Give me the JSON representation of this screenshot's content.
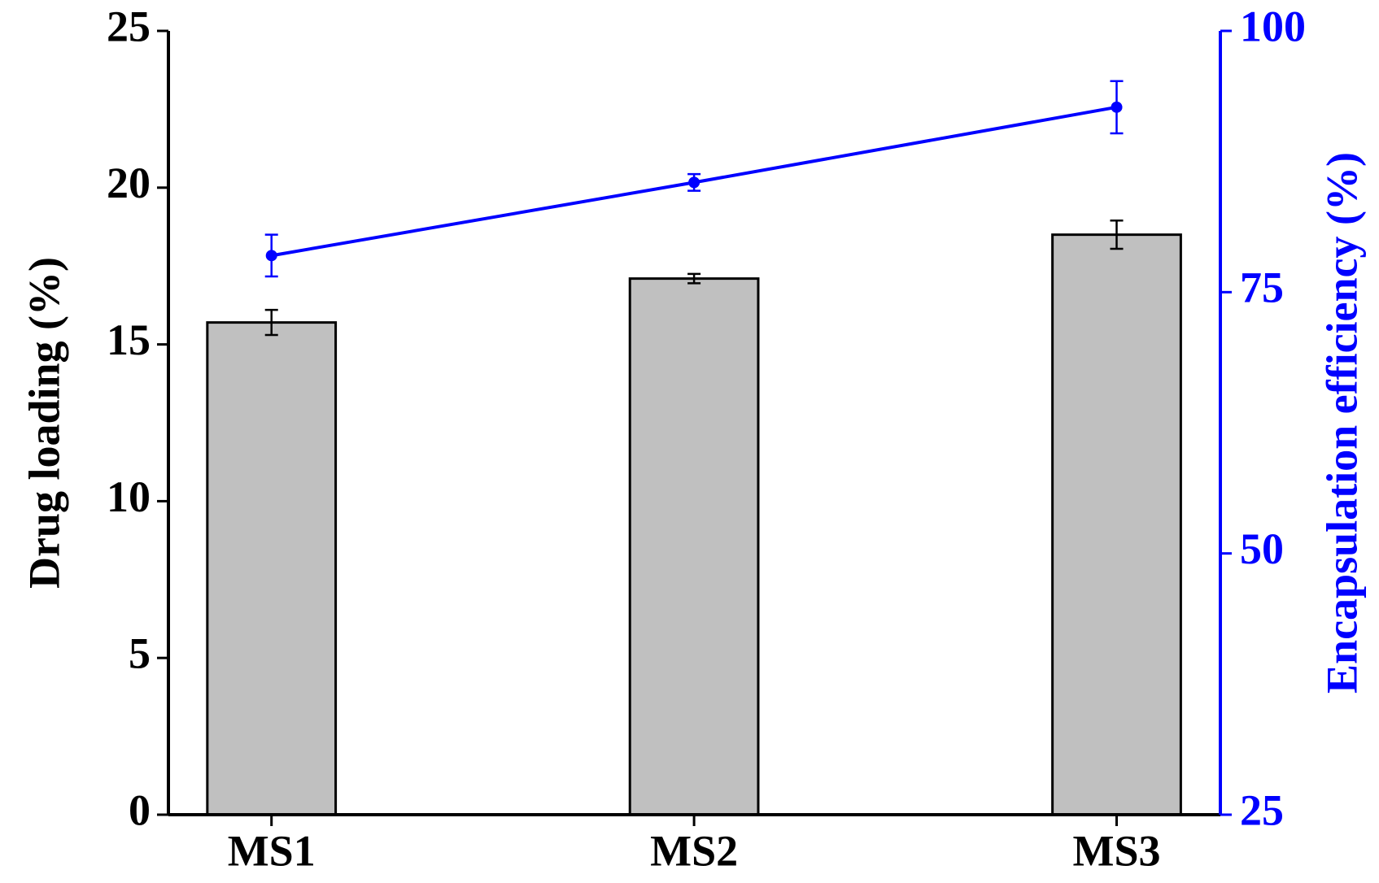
{
  "chart_data": {
    "type": "bar-line",
    "categories": [
      "MS1",
      "MS2",
      "MS3"
    ],
    "series": [
      {
        "name": "Drug loading",
        "type": "bar",
        "color": "#c0c0c0",
        "values": [
          15.7,
          17.1,
          18.5
        ],
        "errors": [
          0.4,
          0.15,
          0.45
        ]
      },
      {
        "name": "Encapsulation efficiency",
        "type": "line",
        "axis": "y2",
        "color": "#0000ff",
        "values": [
          78.5,
          85.5,
          92.7
        ],
        "errors": [
          2,
          0.8,
          2.5
        ]
      }
    ],
    "ylabel": "Drug loading (%)",
    "y2label": "Encapsulation efficiency (%)",
    "ylim": [
      0,
      25
    ],
    "yticks": [
      0,
      5,
      10,
      15,
      20,
      25
    ],
    "y2lim": [
      25,
      100
    ],
    "y2ticks": [
      25,
      50,
      75,
      100
    ]
  }
}
